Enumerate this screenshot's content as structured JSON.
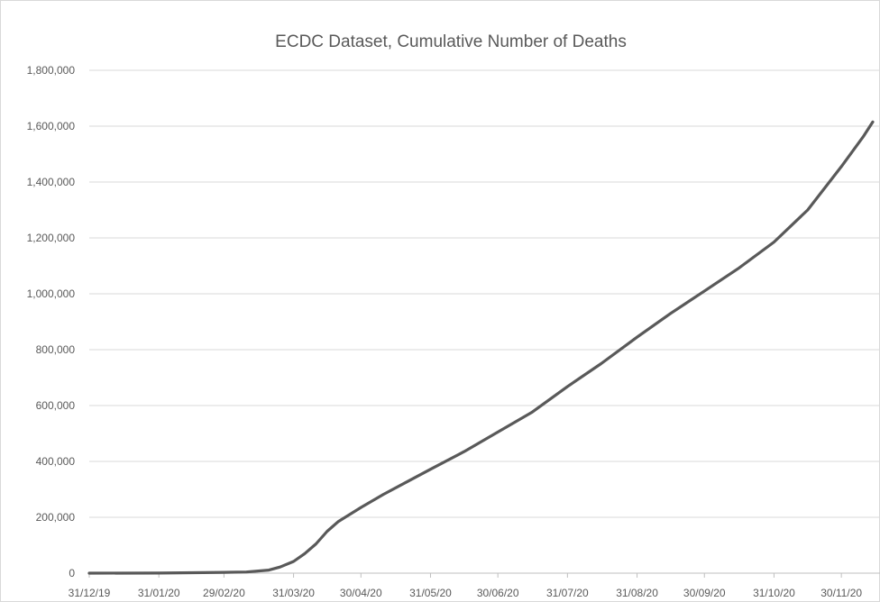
{
  "chart_data": {
    "type": "line",
    "title": "ECDC Dataset, Cumulative Number of Deaths",
    "xlabel": "",
    "ylabel": "",
    "ylim": [
      0,
      1800000
    ],
    "y_ticks": [
      "0",
      "200,000",
      "400,000",
      "600,000",
      "800,000",
      "1,000,000",
      "1,200,000",
      "1,400,000",
      "1,600,000",
      "1,800,000"
    ],
    "x_ticks": [
      "31/12/19",
      "31/01/20",
      "29/02/20",
      "31/03/20",
      "30/04/20",
      "31/05/20",
      "30/06/20",
      "31/07/20",
      "31/08/20",
      "30/09/20",
      "31/10/20",
      "30/11/20"
    ],
    "grid": true,
    "line_color": "#595959",
    "series": [
      {
        "x": [
          "31/12/19",
          "31/01/20",
          "15/02/20",
          "29/02/20",
          "10/03/20",
          "20/03/20",
          "25/03/20",
          "31/03/20",
          "05/04/20",
          "10/04/20",
          "15/04/20",
          "20/04/20",
          "30/04/20",
          "10/05/20",
          "20/05/20",
          "31/05/20",
          "15/06/20",
          "30/06/20",
          "15/07/20",
          "31/07/20",
          "15/08/20",
          "31/08/20",
          "15/09/20",
          "30/09/20",
          "15/10/20",
          "31/10/20",
          "15/11/20",
          "30/11/20",
          "10/12/20",
          "14/12/20"
        ],
        "values": [
          0,
          213,
          1600,
          2900,
          4300,
          11000,
          22000,
          42000,
          70000,
          105000,
          150000,
          185000,
          235000,
          282000,
          325000,
          372000,
          435000,
          505000,
          575000,
          668000,
          750000,
          845000,
          930000,
          1010000,
          1090000,
          1185000,
          1300000,
          1455000,
          1565000,
          1615000
        ]
      }
    ]
  }
}
